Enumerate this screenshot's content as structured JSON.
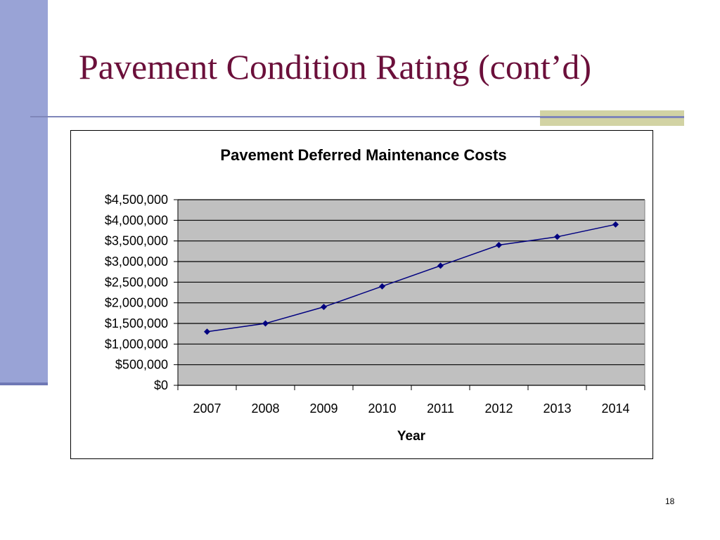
{
  "slide": {
    "title": "Pavement Condition Rating (cont’d)",
    "page_number": "18",
    "colors": {
      "title": "#6b0f3a",
      "left_bar": "#99a3d6",
      "accent_block": "#d2d3a4",
      "rule": "#7f86b9"
    }
  },
  "chart_data": {
    "type": "line",
    "title": "Pavement Deferred Maintenance Costs",
    "xlabel": "Year",
    "ylabel": "",
    "categories": [
      "2007",
      "2008",
      "2009",
      "2010",
      "2011",
      "2012",
      "2013",
      "2014"
    ],
    "series": [
      {
        "values": [
          1300000,
          1500000,
          1900000,
          2400000,
          2900000,
          3400000,
          3600000,
          3900000
        ],
        "color": "#000080",
        "marker": "diamond"
      }
    ],
    "ylim": [
      0,
      4500000
    ],
    "yticks": [
      0,
      500000,
      1000000,
      1500000,
      2000000,
      2500000,
      3000000,
      3500000,
      4000000,
      4500000
    ],
    "ytick_labels": [
      "$0",
      "$500,000",
      "$1,000,000",
      "$1,500,000",
      "$2,000,000",
      "$2,500,000",
      "$3,000,000",
      "$3,500,000",
      "$4,000,000",
      "$4,500,000"
    ],
    "grid": true,
    "plot_background": "#c0c0c0",
    "legend": "none"
  }
}
